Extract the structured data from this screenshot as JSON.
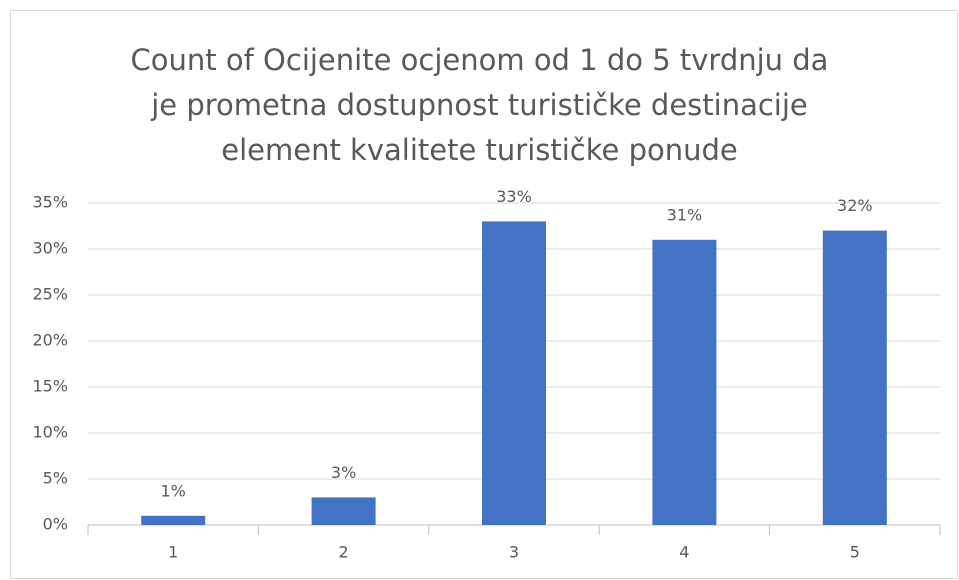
{
  "chart_data": {
    "type": "bar",
    "title": "Count of Ocijenite ocjenom od 1 do 5 tvrdnju da\nje prometna dostupnost turističke destinacije\nelement kvalitete turističke ponude",
    "categories": [
      "1",
      "2",
      "3",
      "4",
      "5"
    ],
    "values": [
      1,
      3,
      33,
      31,
      32
    ],
    "value_labels": [
      "1%",
      "3%",
      "33%",
      "31%",
      "32%"
    ],
    "color": "#4472c4",
    "ylim": [
      0,
      35
    ],
    "yticks": [
      {
        "value": 0,
        "label": "0%"
      },
      {
        "value": 5,
        "label": "5%"
      },
      {
        "value": 10,
        "label": "10%"
      },
      {
        "value": 15,
        "label": "15%"
      },
      {
        "value": 20,
        "label": "20%"
      },
      {
        "value": 25,
        "label": "25%"
      },
      {
        "value": 30,
        "label": "30%"
      },
      {
        "value": 35,
        "label": "35%"
      }
    ],
    "grid": true
  }
}
